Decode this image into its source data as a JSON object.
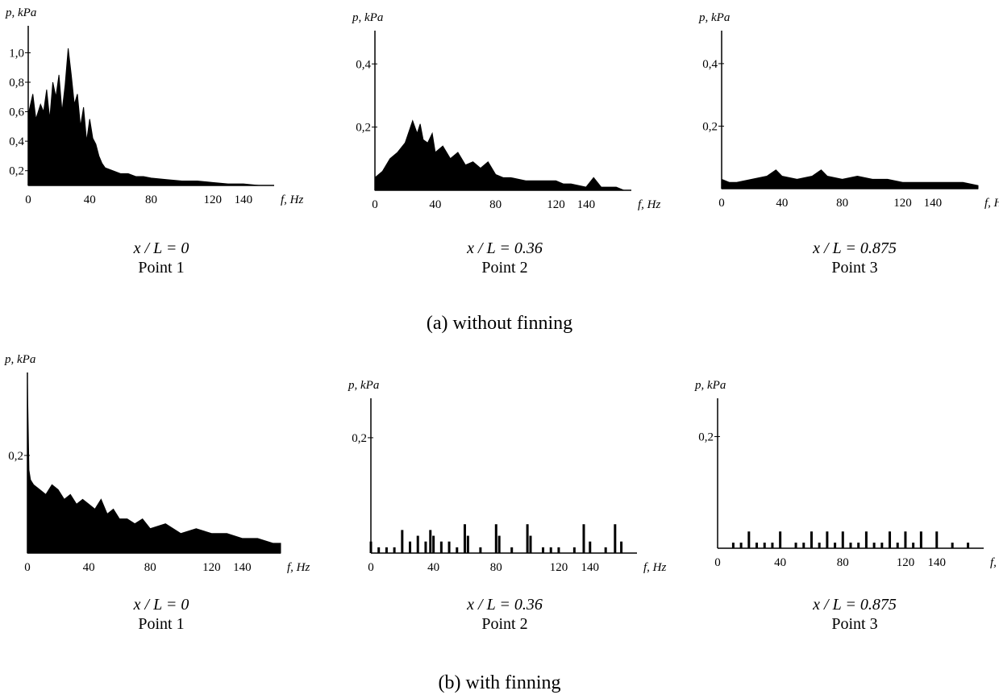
{
  "group_captions": [
    "(a) without finning",
    "(b) with finning"
  ],
  "chart_data": [
    {
      "type": "area",
      "group": 0,
      "ylabel": "p, kPa",
      "xlabel": "f, Hz",
      "xticks": [
        0,
        40,
        80,
        120,
        140
      ],
      "xtick_labels": [
        "0",
        "40",
        "80",
        "120",
        "140"
      ],
      "yticks": [
        0.2,
        0.4,
        0.6,
        0.8,
        1.0
      ],
      "ytick_labels": [
        "0,2",
        "0,4",
        "0,6",
        "0,8",
        "1,0"
      ],
      "xlim": [
        0,
        160
      ],
      "ylim": [
        0.1,
        1.15
      ],
      "caption_eq": "x / L = 0",
      "caption_point": "Point 1",
      "series": [
        {
          "x": [
            0,
            3,
            5,
            8,
            10,
            12,
            14,
            16,
            18,
            20,
            22,
            24,
            26,
            28,
            30,
            32,
            34,
            36,
            38,
            40,
            42,
            44,
            46,
            48,
            50,
            55,
            60,
            65,
            70,
            75,
            80,
            90,
            100,
            110,
            120,
            130,
            140,
            150,
            160
          ],
          "values": [
            0.58,
            0.72,
            0.55,
            0.65,
            0.6,
            0.75,
            0.55,
            0.8,
            0.7,
            0.85,
            0.6,
            0.78,
            1.03,
            0.85,
            0.65,
            0.72,
            0.5,
            0.63,
            0.4,
            0.55,
            0.42,
            0.38,
            0.3,
            0.25,
            0.22,
            0.2,
            0.18,
            0.18,
            0.16,
            0.16,
            0.15,
            0.14,
            0.13,
            0.13,
            0.12,
            0.11,
            0.11,
            0.1,
            0.1
          ]
        }
      ]
    },
    {
      "type": "area",
      "group": 0,
      "ylabel": "p, kPa",
      "xlabel": "f, Hz",
      "xticks": [
        0,
        40,
        80,
        120,
        140
      ],
      "xtick_labels": [
        "0",
        "40",
        "80",
        "120",
        "140"
      ],
      "yticks": [
        0.2,
        0.4
      ],
      "ytick_labels": [
        "0,2",
        "0,4"
      ],
      "xlim": [
        0,
        170
      ],
      "ylim": [
        0,
        0.49
      ],
      "caption_eq": "x / L = 0.36",
      "caption_point": "Point 2",
      "series": [
        {
          "x": [
            0,
            5,
            10,
            15,
            20,
            25,
            28,
            30,
            32,
            35,
            38,
            40,
            45,
            50,
            55,
            60,
            65,
            70,
            75,
            80,
            85,
            90,
            100,
            110,
            120,
            125,
            130,
            140,
            145,
            150,
            155,
            160,
            165
          ],
          "values": [
            0.04,
            0.06,
            0.1,
            0.12,
            0.15,
            0.22,
            0.18,
            0.21,
            0.16,
            0.15,
            0.18,
            0.12,
            0.14,
            0.1,
            0.12,
            0.08,
            0.09,
            0.07,
            0.09,
            0.05,
            0.04,
            0.04,
            0.03,
            0.03,
            0.03,
            0.02,
            0.02,
            0.01,
            0.04,
            0.01,
            0.01,
            0.01,
            0.0
          ]
        }
      ]
    },
    {
      "type": "area",
      "group": 0,
      "ylabel": "p, kPa",
      "xlabel": "f, Hz",
      "xticks": [
        0,
        40,
        80,
        120,
        140
      ],
      "xtick_labels": [
        "0",
        "40",
        "80",
        "120",
        "140"
      ],
      "yticks": [
        0.2,
        0.4
      ],
      "ytick_labels": [
        "0,2",
        "0,4"
      ],
      "xlim": [
        0,
        170
      ],
      "ylim": [
        0,
        0.49
      ],
      "caption_eq": "x / L = 0.875",
      "caption_point": "Point 3",
      "series": [
        {
          "x": [
            0,
            5,
            10,
            20,
            30,
            36,
            40,
            50,
            60,
            66,
            70,
            80,
            90,
            100,
            110,
            120,
            130,
            140,
            150,
            160,
            170
          ],
          "values": [
            0.03,
            0.02,
            0.02,
            0.03,
            0.04,
            0.06,
            0.04,
            0.03,
            0.04,
            0.06,
            0.04,
            0.03,
            0.04,
            0.03,
            0.03,
            0.02,
            0.02,
            0.02,
            0.02,
            0.02,
            0.01
          ]
        }
      ]
    },
    {
      "type": "area",
      "group": 1,
      "ylabel": "p, kPa",
      "xlabel": "f, Hz",
      "xticks": [
        0,
        40,
        80,
        120,
        140
      ],
      "xtick_labels": [
        "0",
        "40",
        "80",
        "120",
        "140"
      ],
      "yticks": [
        0.2
      ],
      "ytick_labels": [
        "0,2"
      ],
      "xlim": [
        0,
        165
      ],
      "ylim": [
        0,
        0.36
      ],
      "caption_eq": "x / L = 0",
      "caption_point": "Point 1",
      "series": [
        {
          "x": [
            0,
            1,
            2,
            4,
            8,
            12,
            16,
            20,
            24,
            28,
            32,
            36,
            40,
            44,
            48,
            52,
            56,
            60,
            65,
            70,
            75,
            80,
            90,
            100,
            110,
            120,
            130,
            140,
            150,
            160,
            165
          ],
          "values": [
            0.35,
            0.17,
            0.15,
            0.14,
            0.13,
            0.12,
            0.14,
            0.13,
            0.11,
            0.12,
            0.1,
            0.11,
            0.1,
            0.09,
            0.11,
            0.08,
            0.09,
            0.07,
            0.07,
            0.06,
            0.07,
            0.05,
            0.06,
            0.04,
            0.05,
            0.04,
            0.04,
            0.03,
            0.03,
            0.02,
            0.02
          ]
        }
      ]
    },
    {
      "type": "bar",
      "group": 1,
      "ylabel": "p, kPa",
      "xlabel": "f, Hz",
      "xticks": [
        0,
        40,
        80,
        120,
        140
      ],
      "xtick_labels": [
        "0",
        "40",
        "80",
        "120",
        "140"
      ],
      "yticks": [
        0.2
      ],
      "ytick_labels": [
        "0,2"
      ],
      "xlim": [
        0,
        170
      ],
      "ylim": [
        0,
        0.26
      ],
      "caption_eq": "x / L = 0.36",
      "caption_point": "Point 2",
      "series": [
        {
          "x": [
            0,
            5,
            10,
            15,
            20,
            25,
            30,
            35,
            38,
            40,
            45,
            50,
            55,
            60,
            62,
            70,
            80,
            82,
            90,
            100,
            102,
            110,
            115,
            120,
            130,
            136,
            140,
            150,
            156,
            160,
            165
          ],
          "values": [
            0.02,
            0.01,
            0.01,
            0.01,
            0.04,
            0.02,
            0.03,
            0.02,
            0.04,
            0.03,
            0.02,
            0.02,
            0.01,
            0.05,
            0.03,
            0.01,
            0.05,
            0.03,
            0.01,
            0.05,
            0.03,
            0.01,
            0.01,
            0.01,
            0.01,
            0.05,
            0.02,
            0.01,
            0.05,
            0.02,
            0.0
          ]
        }
      ]
    },
    {
      "type": "bar",
      "group": 1,
      "ylabel": "p, kPa",
      "xlabel": "f, Hz",
      "xticks": [
        0,
        40,
        80,
        120,
        140
      ],
      "xtick_labels": [
        "0",
        "40",
        "80",
        "120",
        "140"
      ],
      "yticks": [
        0.2
      ],
      "ytick_labels": [
        "0,2"
      ],
      "xlim": [
        0,
        170
      ],
      "ylim": [
        0,
        0.26
      ],
      "caption_eq": "x / L = 0.875",
      "caption_point": "Point 3",
      "series": [
        {
          "x": [
            10,
            15,
            20,
            25,
            30,
            35,
            40,
            50,
            55,
            60,
            65,
            70,
            75,
            80,
            85,
            90,
            95,
            100,
            105,
            110,
            115,
            120,
            125,
            130,
            140,
            150,
            160
          ],
          "values": [
            0.01,
            0.01,
            0.03,
            0.01,
            0.01,
            0.01,
            0.03,
            0.01,
            0.01,
            0.03,
            0.01,
            0.03,
            0.01,
            0.03,
            0.01,
            0.01,
            0.03,
            0.01,
            0.01,
            0.03,
            0.01,
            0.03,
            0.01,
            0.03,
            0.03,
            0.01,
            0.01
          ]
        }
      ]
    }
  ]
}
